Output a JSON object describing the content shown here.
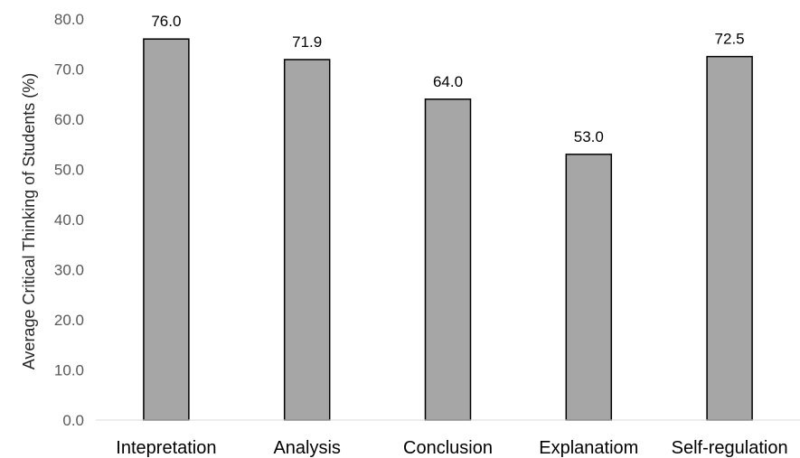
{
  "chart_data": {
    "type": "bar",
    "categories": [
      "Intepretation",
      "Analysis",
      "Conclusion",
      "Explanatiom",
      "Self-regulation"
    ],
    "values": [
      76.0,
      71.9,
      64.0,
      53.0,
      72.5
    ],
    "data_labels": [
      "76.0",
      "71.9",
      "64.0",
      "53.0",
      "72.5"
    ],
    "title": "",
    "xlabel": "",
    "ylabel": "Average Critical Thinking of Students (%)",
    "ylim": [
      0,
      80
    ],
    "yticks": [
      0,
      10,
      20,
      30,
      40,
      50,
      60,
      70,
      80
    ],
    "ytick_labels": [
      "0.0",
      "10.0",
      "20.0",
      "30.0",
      "40.0",
      "50.0",
      "60.0",
      "70.0",
      "80.0"
    ],
    "grid": false,
    "legend": "none",
    "colors": {
      "bar_fill": "#a6a6a6",
      "bar_stroke": "#000000",
      "axis_line": "#d9d9d9"
    }
  }
}
